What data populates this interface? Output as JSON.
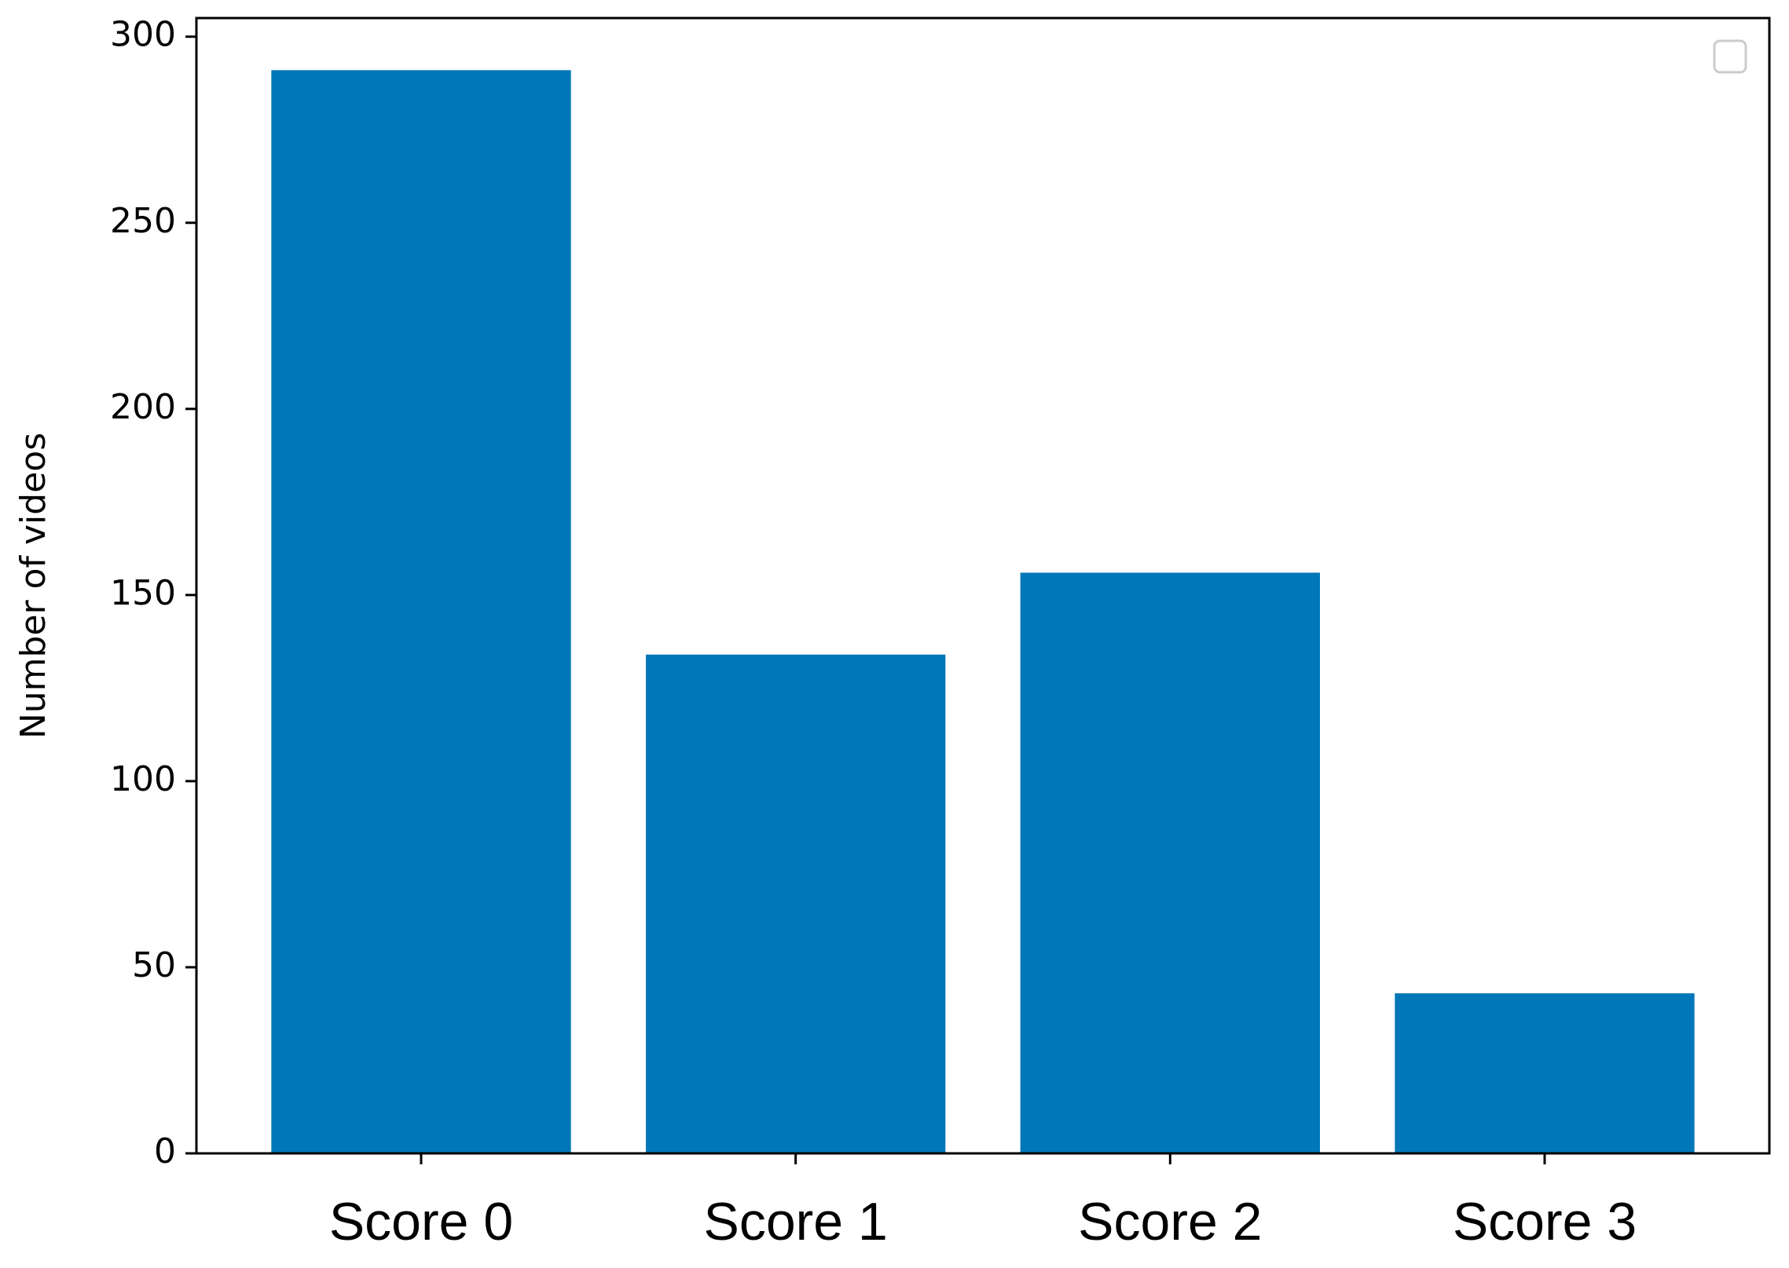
{
  "chart_data": {
    "type": "bar",
    "y_label": "Number of videos",
    "categories": [
      "Score 0",
      "Score 1",
      "Score 2",
      "Score 3"
    ],
    "values": [
      291,
      134,
      156,
      43
    ],
    "color": "#0077b8",
    "ylim": [
      0,
      305
    ],
    "yticks": [
      0,
      50,
      100,
      150,
      200,
      250,
      300
    ]
  }
}
